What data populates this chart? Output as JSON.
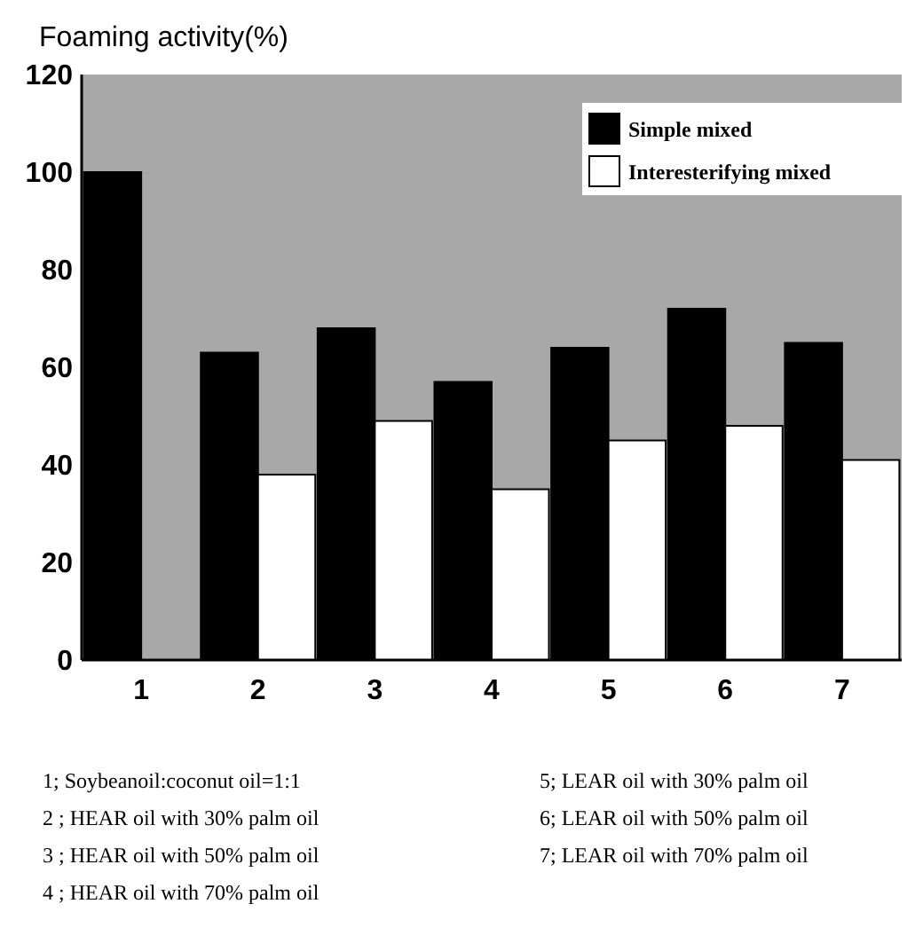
{
  "chart_data": {
    "type": "bar",
    "ylabel": "Foaming activity(%)",
    "categories": [
      "1",
      "2",
      "3",
      "4",
      "5",
      "6",
      "7"
    ],
    "series": [
      {
        "name": "Simple mixed",
        "color": "#000000",
        "values": [
          100,
          63,
          68,
          57,
          64,
          72,
          65
        ]
      },
      {
        "name": "Interesterifying mixed",
        "color": "#ffffff",
        "values": [
          null,
          38,
          49,
          35,
          45,
          48,
          41
        ]
      }
    ],
    "ylim": [
      0,
      120
    ],
    "yticks": [
      0,
      20,
      40,
      60,
      80,
      100,
      120
    ],
    "grid": false,
    "legend": "top right",
    "annotations": [
      "1; Soybeanoil:coconut oil=1:1",
      "2 ; HEAR oil with 30% palm oil",
      "3 ; HEAR oil with 50% palm oil",
      "4 ; HEAR oil with 70% palm oil",
      "5; LEAR oil with 30% palm oil",
      "6; LEAR oil with 50% palm oil",
      "7; LEAR oil with 70% palm oil"
    ]
  }
}
